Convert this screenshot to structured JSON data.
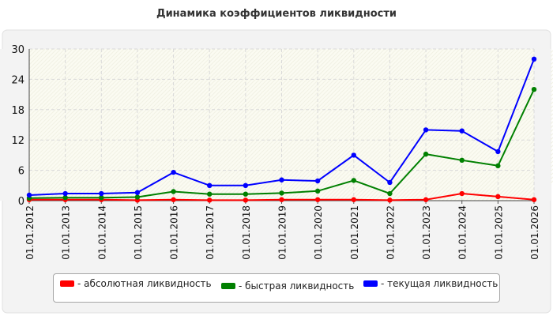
{
  "chart_data": {
    "type": "line",
    "title": "Динамика коэффициентов ликвидности",
    "xlabel": "",
    "ylabel": "",
    "categories": [
      "01.01.2012",
      "01.01.2013",
      "01.01.2014",
      "01.01.2015",
      "01.01.2016",
      "01.01.2017",
      "01.01.2018",
      "01.01.2019",
      "01.01.2020",
      "01.01.2021",
      "01.01.2022",
      "01.01.2023",
      "01.01.2024",
      "01.01.2025",
      "01.01.2026"
    ],
    "ylim": [
      0,
      30
    ],
    "yticks": [
      "0",
      "6",
      "12",
      "18",
      "24",
      "30"
    ],
    "grid": true,
    "legend_position": "bottom",
    "series": [
      {
        "name": "- абсолютная ликвидность",
        "color": "#ff0000",
        "values": [
          0.2,
          0.2,
          0.2,
          0.1,
          0.2,
          0.1,
          0.1,
          0.2,
          0.2,
          0.2,
          0.1,
          0.2,
          1.4,
          0.8,
          0.2
        ]
      },
      {
        "name": "- быстрая ликвидность",
        "color": "#008000",
        "values": [
          0.5,
          0.6,
          0.6,
          0.7,
          1.8,
          1.3,
          1.3,
          1.5,
          1.9,
          4.0,
          1.4,
          9.2,
          8.0,
          6.9,
          22.0
        ]
      },
      {
        "name": "- текущая ликвидность",
        "color": "#0000ff",
        "values": [
          1.1,
          1.4,
          1.4,
          1.6,
          5.6,
          3.0,
          3.0,
          4.1,
          3.9,
          9.0,
          3.6,
          14.0,
          13.8,
          9.7,
          28.0
        ]
      }
    ]
  }
}
